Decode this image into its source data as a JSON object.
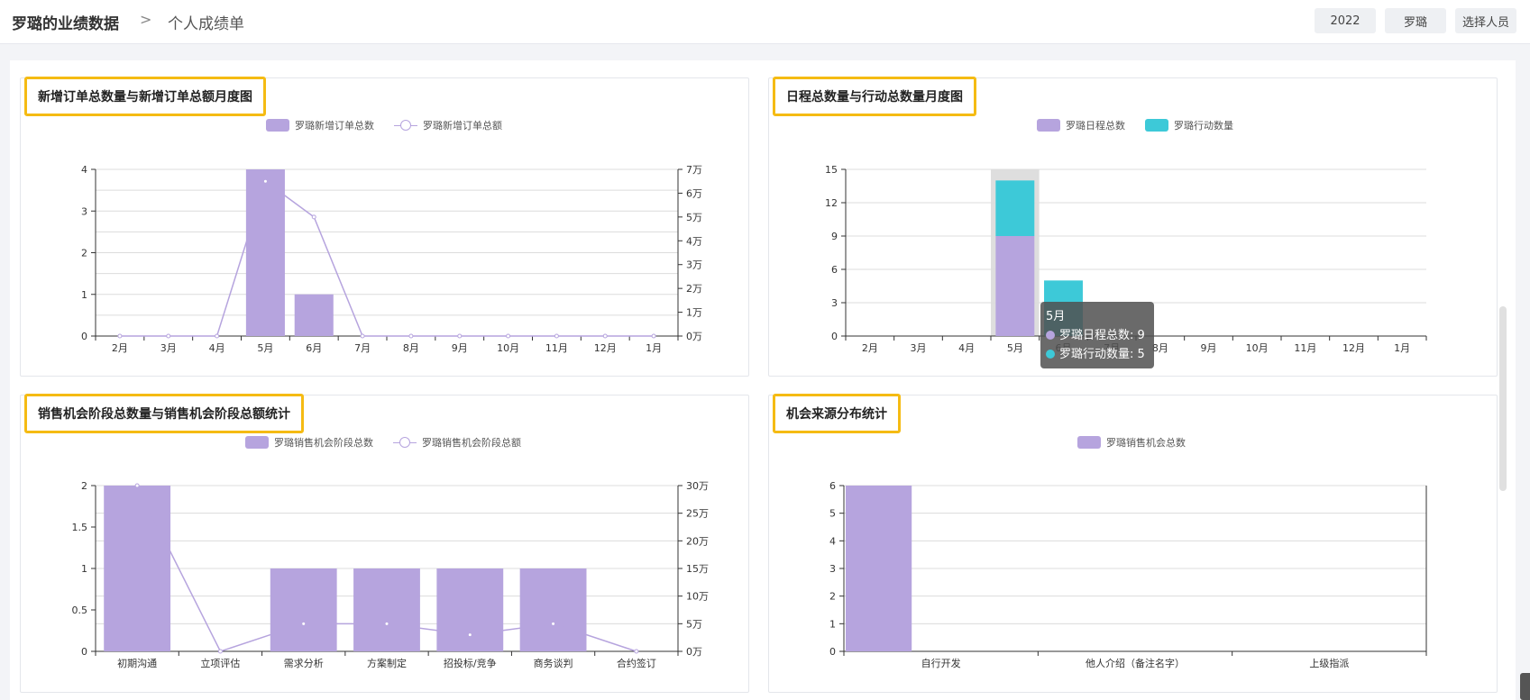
{
  "header": {
    "title": "罗璐的业绩数据",
    "separator": ">",
    "subtitle": "个人成绩单",
    "year_button": "2022",
    "person_button": "罗璐",
    "select_button": "选择人员"
  },
  "colors": {
    "purple": "#b6a4de",
    "cyan": "#3dc9d8",
    "accent_border": "#f5bb13"
  },
  "icons": {
    "separator": "chevron-right-icon"
  },
  "charts": {
    "orders": {
      "title": "新增订单总数量与新增订单总额月度图",
      "legend": [
        "罗璐新增订单总数",
        "罗璐新增订单总额"
      ]
    },
    "schedule": {
      "title": "日程总数量与行动总数量月度图",
      "legend": [
        "罗璐日程总数",
        "罗璐行动数量"
      ],
      "tooltip": {
        "month": "5月",
        "line1": "罗璐日程总数: 9",
        "line2": "罗璐行动数量: 5"
      }
    },
    "stages": {
      "title": "销售机会阶段总数量与销售机会阶段总额统计",
      "legend": [
        "罗璐销售机会阶段总数",
        "罗璐销售机会阶段总额"
      ]
    },
    "source": {
      "title": "机会来源分布统计",
      "legend": [
        "罗璐销售机会总数"
      ]
    }
  },
  "chart_data": [
    {
      "type": "bar",
      "title": "新增订单总数量与新增订单总额月度图",
      "categories": [
        "2月",
        "3月",
        "4月",
        "5月",
        "6月",
        "7月",
        "8月",
        "9月",
        "10月",
        "11月",
        "12月",
        "1月"
      ],
      "series": [
        {
          "name": "罗璐新增订单总数",
          "type": "bar",
          "axis": "left",
          "values": [
            0,
            0,
            0,
            4,
            1,
            0,
            0,
            0,
            0,
            0,
            0,
            0
          ]
        },
        {
          "name": "罗璐新增订单总额",
          "type": "line",
          "axis": "right",
          "values": [
            0,
            0,
            0,
            65000,
            50000,
            0,
            0,
            0,
            0,
            0,
            0,
            0
          ]
        }
      ],
      "ylim": [
        0,
        4
      ],
      "yticks": [
        0,
        1,
        2,
        3,
        4
      ],
      "y2lim": [
        0,
        70000
      ],
      "y2ticks": [
        "0万",
        "1万",
        "2万",
        "3万",
        "4万",
        "5万",
        "6万",
        "7万"
      ]
    },
    {
      "type": "bar",
      "title": "日程总数量与行动总数量月度图",
      "categories": [
        "2月",
        "3月",
        "4月",
        "5月",
        "6月",
        "7月",
        "8月",
        "9月",
        "10月",
        "11月",
        "12月",
        "1月"
      ],
      "stacked": true,
      "series": [
        {
          "name": "罗璐日程总数",
          "values": [
            0,
            0,
            0,
            9,
            0,
            0,
            0,
            0,
            0,
            0,
            0,
            0
          ]
        },
        {
          "name": "罗璐行动数量",
          "values": [
            0,
            0,
            0,
            5,
            5,
            0,
            0,
            0,
            0,
            0,
            0,
            0
          ]
        }
      ],
      "ylim": [
        0,
        15
      ],
      "yticks": [
        0,
        3,
        6,
        9,
        12,
        15
      ],
      "highlight_category": "5月"
    },
    {
      "type": "bar",
      "title": "销售机会阶段总数量与销售机会阶段总额统计",
      "categories": [
        "初期沟通",
        "立项评估",
        "需求分析",
        "方案制定",
        "招投标/竞争",
        "商务谈判",
        "合约签订"
      ],
      "series": [
        {
          "name": "罗璐销售机会阶段总数",
          "type": "bar",
          "axis": "left",
          "values": [
            2,
            0,
            1,
            1,
            1,
            1,
            0
          ]
        },
        {
          "name": "罗璐销售机会阶段总额",
          "type": "line",
          "axis": "right",
          "values": [
            300000,
            0,
            50000,
            50000,
            30000,
            50000,
            0
          ]
        }
      ],
      "ylim": [
        0,
        2
      ],
      "yticks": [
        "0",
        "0.5",
        "1",
        "1.5",
        "2"
      ],
      "y2lim": [
        0,
        300000
      ],
      "y2ticks": [
        "0万",
        "5万",
        "10万",
        "15万",
        "20万",
        "25万",
        "30万"
      ]
    },
    {
      "type": "bar",
      "title": "机会来源分布统计",
      "categories": [
        "自行开发",
        "他人介绍（备注名字）",
        "上级指派"
      ],
      "series": [
        {
          "name": "罗璐销售机会总数",
          "values": [
            6,
            0,
            0
          ]
        }
      ],
      "ylim": [
        0,
        6
      ],
      "yticks": [
        0,
        1,
        2,
        3,
        4,
        5,
        6
      ]
    }
  ]
}
